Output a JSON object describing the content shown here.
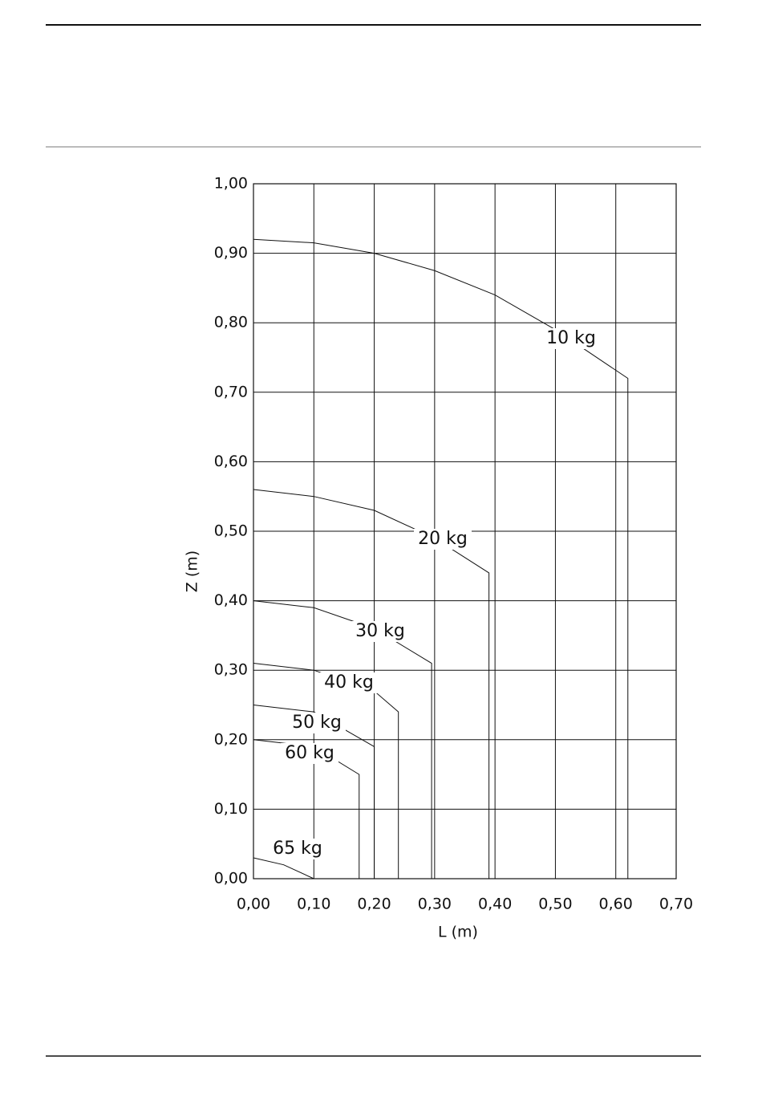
{
  "chart_data": {
    "type": "line",
    "x_label": "L (m)",
    "y_label": "Z (m)",
    "xlim": [
      0,
      0.7
    ],
    "ylim": [
      0,
      1
    ],
    "xticks": [
      {
        "value": 0,
        "label": "0,00"
      },
      {
        "value": 0.1,
        "label": "0,10"
      },
      {
        "value": 0.2,
        "label": "0,20"
      },
      {
        "value": 0.3,
        "label": "0,30"
      },
      {
        "value": 0.4,
        "label": "0,40"
      },
      {
        "value": 0.5,
        "label": "0,50"
      },
      {
        "value": 0.6,
        "label": "0,60"
      },
      {
        "value": 0.7,
        "label": "0,70"
      }
    ],
    "yticks": [
      {
        "value": 0,
        "label": "0,00"
      },
      {
        "value": 0.1,
        "label": "0,10"
      },
      {
        "value": 0.2,
        "label": "0,20"
      },
      {
        "value": 0.3,
        "label": "0,30"
      },
      {
        "value": 0.4,
        "label": "0,40"
      },
      {
        "value": 0.5,
        "label": "0,50"
      },
      {
        "value": 0.6,
        "label": "0,60"
      },
      {
        "value": 0.7,
        "label": "0,70"
      },
      {
        "value": 0.8,
        "label": "0,80"
      },
      {
        "value": 0.9,
        "label": "0,90"
      },
      {
        "value": 1,
        "label": "1,00"
      }
    ],
    "grid": true,
    "color": "#111111",
    "series": [
      {
        "name": "10 kg",
        "x": [
          0,
          0.1,
          0.2,
          0.3,
          0.4,
          0.5,
          0.62,
          0.62
        ],
        "values": [
          0.92,
          0.915,
          0.9,
          0.875,
          0.84,
          0.79,
          0.72,
          0
        ]
      },
      {
        "name": "20 kg",
        "x": [
          0,
          0.1,
          0.2,
          0.3,
          0.39,
          0.39
        ],
        "values": [
          0.56,
          0.55,
          0.53,
          0.49,
          0.44,
          0
        ]
      },
      {
        "name": "30 kg",
        "x": [
          0,
          0.1,
          0.2,
          0.295,
          0.295
        ],
        "values": [
          0.4,
          0.39,
          0.36,
          0.31,
          0
        ]
      },
      {
        "name": "40 kg",
        "x": [
          0,
          0.1,
          0.2,
          0.24,
          0.24
        ],
        "values": [
          0.31,
          0.3,
          0.27,
          0.24,
          0
        ]
      },
      {
        "name": "50 kg",
        "x": [
          0,
          0.1,
          0.2,
          0.2
        ],
        "values": [
          0.25,
          0.24,
          0.19,
          0
        ]
      },
      {
        "name": "60 kg",
        "x": [
          0,
          0.1,
          0.175,
          0.175
        ],
        "values": [
          0.2,
          0.19,
          0.15,
          0
        ]
      },
      {
        "name": "65 kg",
        "x": [
          0,
          0.05,
          0.1
        ],
        "values": [
          0.03,
          0.02,
          0
        ]
      }
    ]
  }
}
